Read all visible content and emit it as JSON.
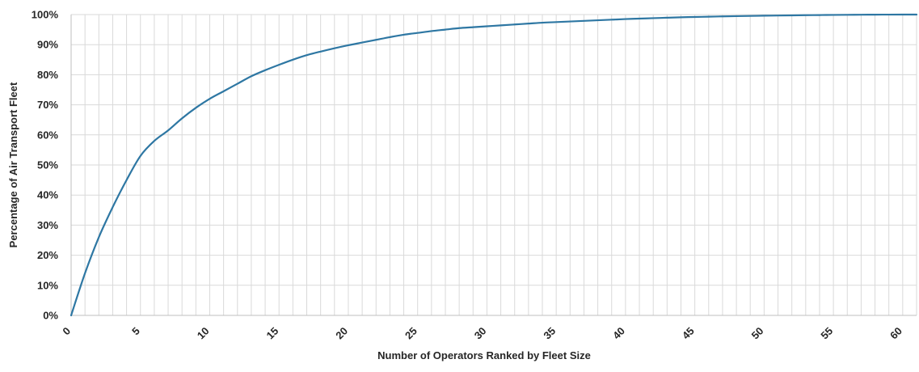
{
  "chart_data": {
    "type": "line",
    "title": "",
    "xlabel": "Number of Operators Ranked by Fleet Size",
    "ylabel": "Percentage of Air Transport Fleet",
    "xlim": [
      0,
      61
    ],
    "ylim": [
      0,
      100
    ],
    "x_ticks": [
      "0",
      "5",
      "10",
      "15",
      "20",
      "25",
      "30",
      "35",
      "40",
      "45",
      "50",
      "55",
      "60"
    ],
    "y_ticks": [
      "0%",
      "10%",
      "20%",
      "30%",
      "40%",
      "50%",
      "60%",
      "70%",
      "80%",
      "90%",
      "100%"
    ],
    "grid": true,
    "legend": "none",
    "colors": {
      "line": "#2e77a3",
      "grid": "#d9d9d9",
      "axis": "#bfbfbf"
    },
    "series": [
      {
        "x": [
          0,
          1,
          2,
          3,
          4,
          5,
          6,
          7,
          8,
          9,
          10,
          11,
          12,
          13,
          14,
          15,
          16,
          17,
          18,
          19,
          20,
          21,
          22,
          23,
          24,
          25,
          26,
          27,
          28,
          29,
          30,
          31,
          32,
          33,
          34,
          35,
          36,
          37,
          38,
          39,
          40,
          41,
          42,
          43,
          44,
          45,
          46,
          47,
          48,
          49,
          50,
          51,
          52,
          53,
          54,
          55,
          56,
          57,
          58,
          59,
          60,
          61
        ],
        "values": [
          0,
          14,
          26,
          36,
          45,
          53,
          58,
          61.5,
          65.5,
          69,
          72,
          74.5,
          77,
          79.5,
          81.5,
          83.3,
          85,
          86.5,
          87.7,
          88.8,
          89.8,
          90.7,
          91.6,
          92.5,
          93.3,
          93.9,
          94.5,
          95,
          95.5,
          95.8,
          96.1,
          96.4,
          96.7,
          97,
          97.3,
          97.5,
          97.7,
          97.9,
          98.1,
          98.3,
          98.5,
          98.65,
          98.8,
          98.95,
          99.1,
          99.2,
          99.3,
          99.4,
          99.48,
          99.55,
          99.62,
          99.68,
          99.74,
          99.79,
          99.84,
          99.88,
          99.92,
          99.95,
          99.97,
          99.99,
          100,
          100
        ]
      }
    ]
  }
}
